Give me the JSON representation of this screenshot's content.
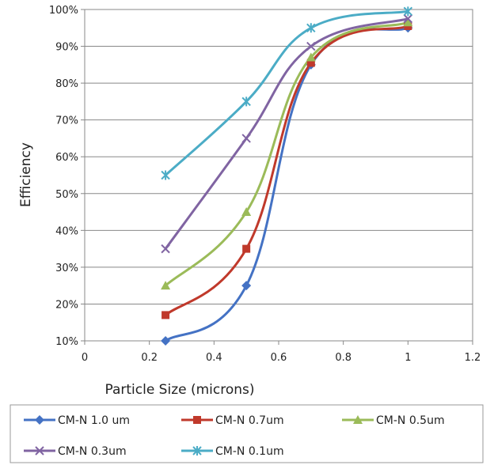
{
  "chart_data": {
    "type": "line",
    "title": "",
    "xlabel": "Particle Size (microns)",
    "ylabel": "Efficiency",
    "xlim": [
      0,
      1.2
    ],
    "ylim": [
      0.1,
      1.0
    ],
    "x_ticks": [
      "0",
      "0.2",
      "0.4",
      "0.6",
      "0.8",
      "1",
      "1.2"
    ],
    "y_ticks": [
      "10%",
      "20%",
      "30%",
      "40%",
      "50%",
      "60%",
      "70%",
      "80%",
      "90%",
      "100%"
    ],
    "grid": "horizontal",
    "legend_position": "bottom",
    "x": [
      0.25,
      0.5,
      0.7,
      1.0
    ],
    "series": [
      {
        "name": "CM-N 1.0 um",
        "values": [
          0.1,
          0.25,
          0.85,
          0.95
        ],
        "color": "#4472C4",
        "marker": "diamond"
      },
      {
        "name": "CM-N 0.7um",
        "values": [
          0.17,
          0.35,
          0.855,
          0.955
        ],
        "color": "#C0392B",
        "marker": "square"
      },
      {
        "name": "CM-N 0.5um",
        "values": [
          0.25,
          0.45,
          0.87,
          0.965
        ],
        "color": "#9BBB59",
        "marker": "triangle"
      },
      {
        "name": "CM-N 0.3um",
        "values": [
          0.35,
          0.65,
          0.9,
          0.975
        ],
        "color": "#8064A2",
        "marker": "x"
      },
      {
        "name": "CM-N 0.1um",
        "values": [
          0.55,
          0.75,
          0.95,
          0.995
        ],
        "color": "#4BACC6",
        "marker": "star"
      }
    ]
  }
}
